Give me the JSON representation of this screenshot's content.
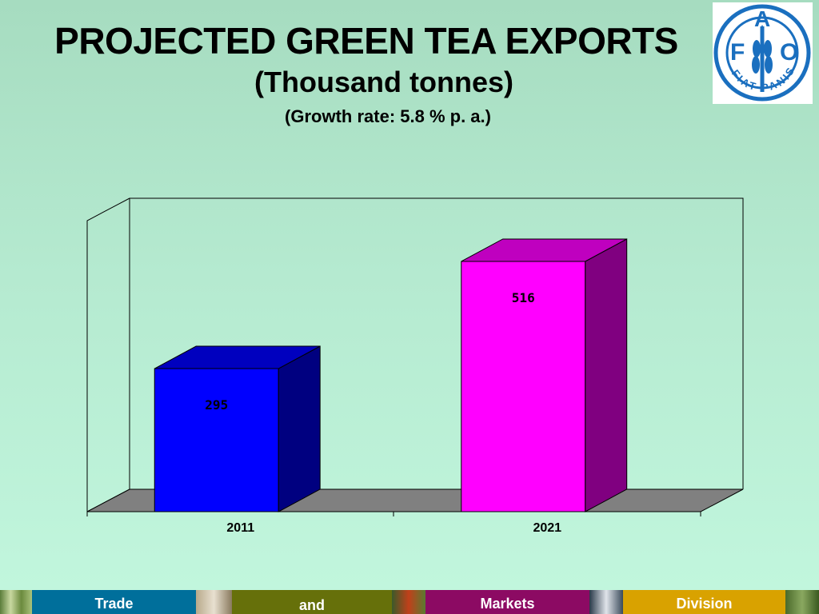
{
  "header": {
    "title": "PROJECTED GREEN TEA EXPORTS",
    "subtitle": "(Thousand tonnes)",
    "growth": "(Growth rate: 5.8 %  p. a.)"
  },
  "logo": {
    "letters": [
      "F",
      "A",
      "O"
    ],
    "motto": "FIAT PANIS"
  },
  "chart_data": {
    "type": "bar",
    "categories": [
      "2011",
      "2021"
    ],
    "values": [
      295,
      516
    ],
    "colors": [
      "#0000ff",
      "#ff00ff"
    ],
    "title": "PROJECTED GREEN TEA EXPORTS",
    "xlabel": "",
    "ylabel": "",
    "ylim": [
      0,
      600
    ],
    "grid": false,
    "style": "3d-bar"
  },
  "footer": {
    "items": [
      {
        "label": "Trade",
        "color": "#006f9b"
      },
      {
        "label": "and",
        "color": "#66700a"
      },
      {
        "label": "Markets",
        "color": "#8c0a63"
      },
      {
        "label": "Division",
        "color": "#d9a200"
      }
    ]
  }
}
